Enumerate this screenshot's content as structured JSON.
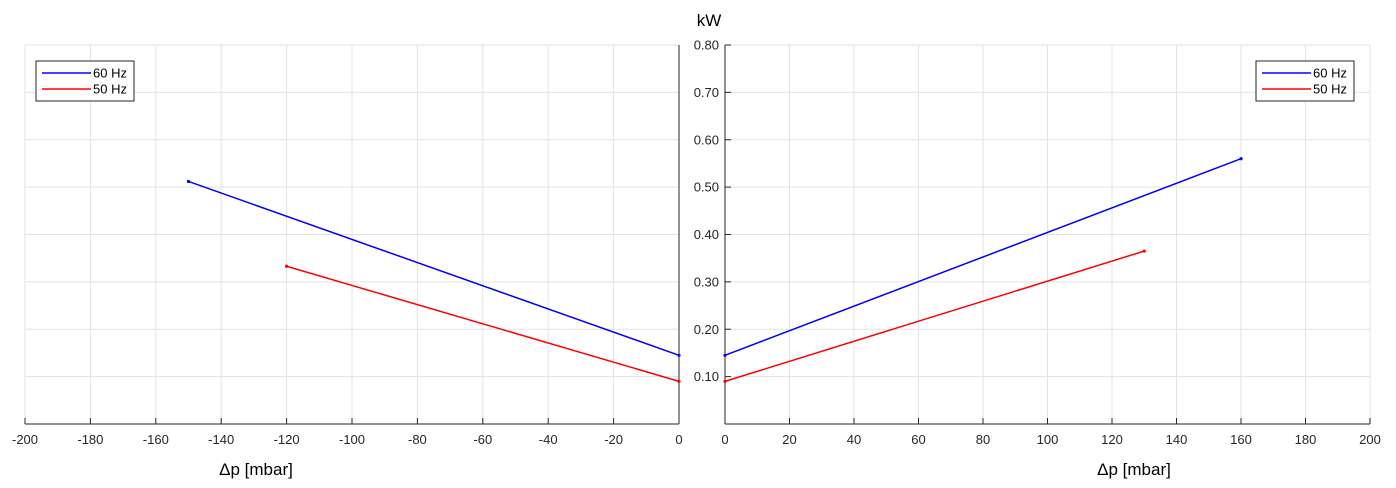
{
  "chart_data": [
    {
      "type": "line",
      "panel": "left",
      "title": "",
      "xlabel": "Δp [mbar]",
      "ylabel": "",
      "xlim": [
        -200,
        0
      ],
      "ylim": [
        0,
        0.8
      ],
      "grid": true,
      "legend_position": "top-left",
      "x_ticks": [
        -200,
        -180,
        -160,
        -140,
        -120,
        -100,
        -80,
        -60,
        -40,
        -20,
        0
      ],
      "series": [
        {
          "name": "60 Hz",
          "color": "#0000ff",
          "x": [
            -150,
            0
          ],
          "y": [
            0.512,
            0.145
          ]
        },
        {
          "name": "50 Hz",
          "color": "#ff0000",
          "x": [
            -120,
            0
          ],
          "y": [
            0.333,
            0.09
          ]
        }
      ]
    },
    {
      "type": "line",
      "panel": "right",
      "title": "kW",
      "xlabel": "Δp [mbar]",
      "ylabel": "",
      "xlim": [
        0,
        200
      ],
      "ylim": [
        0,
        0.8
      ],
      "grid": true,
      "legend_position": "top-right",
      "x_ticks": [
        0,
        20,
        40,
        60,
        80,
        100,
        120,
        140,
        160,
        180,
        200
      ],
      "y_ticks": [
        "0.10",
        "0.20",
        "0.30",
        "0.40",
        "0.50",
        "0.60",
        "0.70",
        "0.80"
      ],
      "series": [
        {
          "name": "60 Hz",
          "color": "#0000ff",
          "x": [
            0,
            160
          ],
          "y": [
            0.145,
            0.56
          ]
        },
        {
          "name": "50 Hz",
          "color": "#ff0000",
          "x": [
            0,
            130
          ],
          "y": [
            0.09,
            0.365
          ]
        }
      ]
    }
  ]
}
